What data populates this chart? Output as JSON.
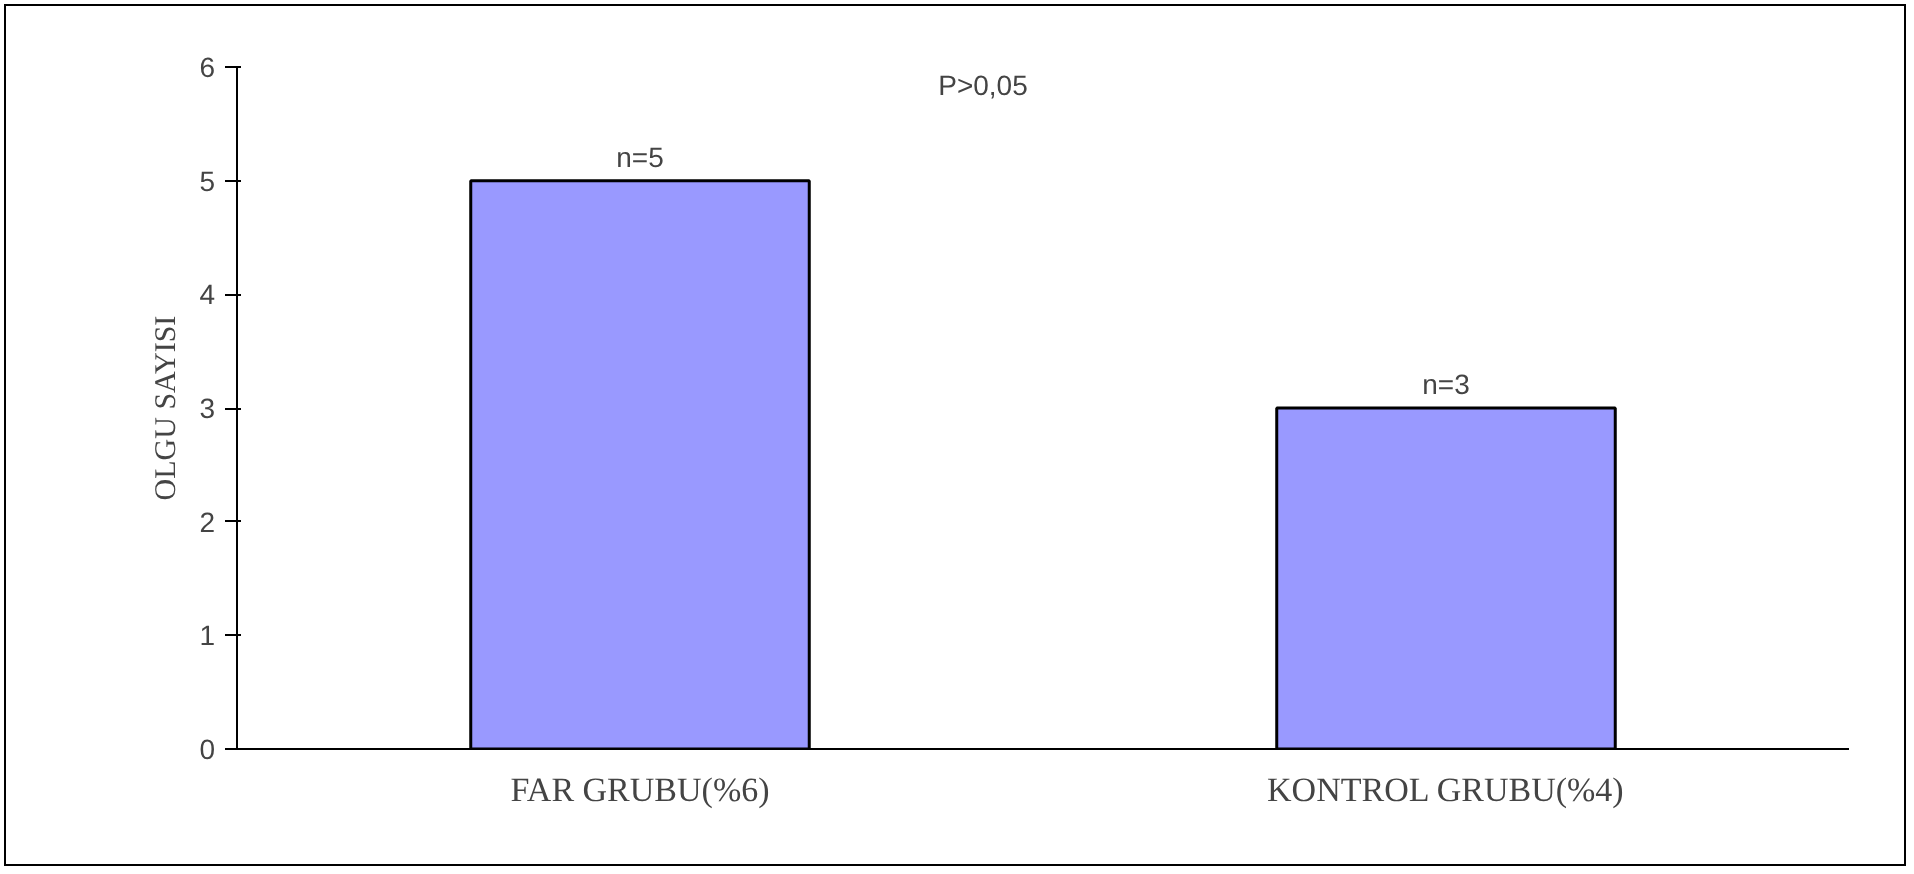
{
  "chart_data": {
    "type": "bar",
    "ylabel": "OLGU SAYISI",
    "categories": [
      "FAR GRUBU(%6)",
      "KONTROL GRUBU(%4)"
    ],
    "values": [
      5,
      3
    ],
    "value_labels": [
      "n=5",
      "n=3"
    ],
    "color": "#9999ff",
    "ylim": [
      0,
      6
    ],
    "yticks": [
      0,
      1,
      2,
      3,
      4,
      5,
      6
    ],
    "grid": false,
    "annotations": [
      "P>0,05"
    ]
  }
}
